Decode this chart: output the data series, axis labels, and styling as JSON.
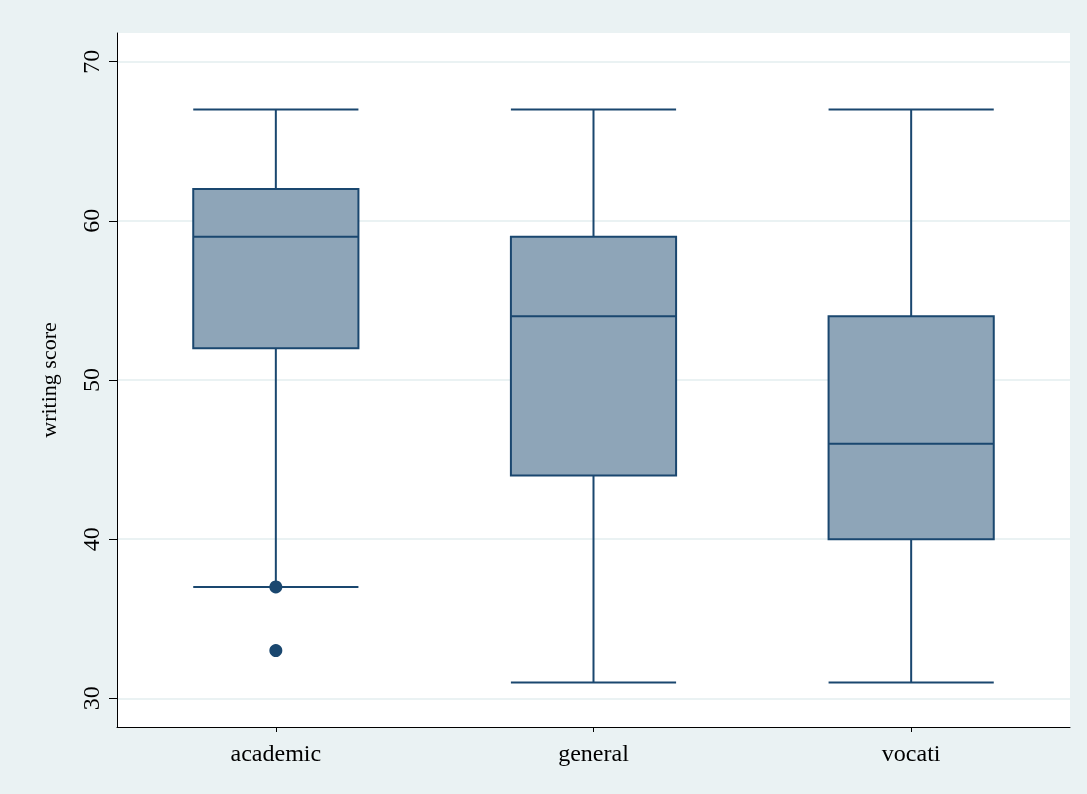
{
  "chart_data": {
    "type": "box",
    "ylabel": "writing score",
    "categories": [
      "academic",
      "general",
      "vocati"
    ],
    "boxes": [
      {
        "low": 37,
        "q1": 52,
        "median": 59,
        "q3": 62,
        "high": 67,
        "outliers": [
          37,
          33
        ]
      },
      {
        "low": 31,
        "q1": 44,
        "median": 54,
        "q3": 59,
        "high": 67
      },
      {
        "low": 31,
        "q1": 40,
        "median": 46,
        "q3": 54,
        "high": 67
      }
    ],
    "color": "#8ea5b8",
    "ylim": [
      28.2,
      71.8
    ],
    "yticks": [
      30,
      40,
      50,
      60,
      70
    ],
    "grid": "y",
    "marker": "circle"
  }
}
